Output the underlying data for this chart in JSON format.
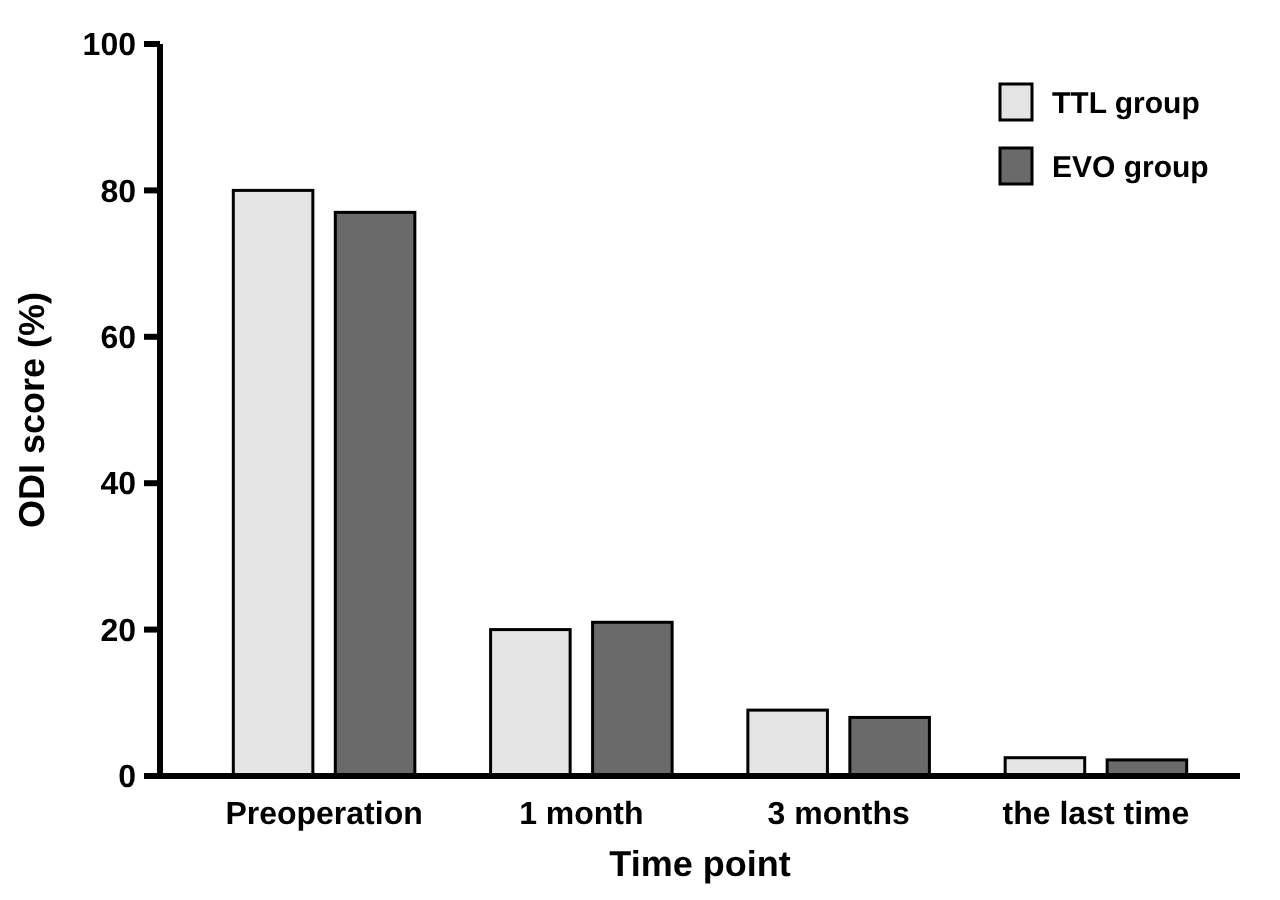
{
  "chart_data": {
    "type": "bar",
    "xlabel": "Time point",
    "ylabel": "ODI score (%)",
    "categories": [
      "Preoperation",
      "1 month",
      "3 months",
      "the last time"
    ],
    "series": [
      {
        "name": "TTL group",
        "color": "#e4e4e4",
        "values": [
          80,
          20,
          9,
          2.5
        ]
      },
      {
        "name": "EVO group",
        "color": "#6a6a6a",
        "values": [
          77,
          21,
          8,
          2.2
        ]
      }
    ],
    "ylim": [
      0,
      100
    ],
    "yticks": [
      0,
      20,
      40,
      60,
      80,
      100
    ],
    "grid": false,
    "legend": "top right"
  }
}
